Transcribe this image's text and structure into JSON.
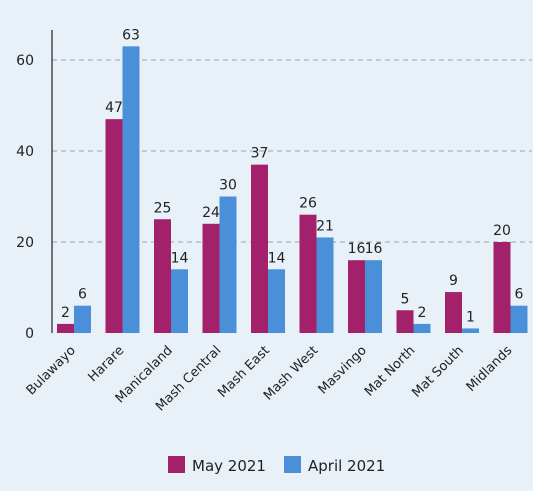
{
  "chart_data": {
    "type": "bar",
    "title": "",
    "xlabel": "",
    "ylabel": "",
    "ylim": [
      0,
      70
    ],
    "yticks": [
      0,
      20,
      40,
      60
    ],
    "grid": true,
    "legend_position": "bottom",
    "categories": [
      "Bulawayo",
      "Harare",
      "Manicaland",
      "Mash Central",
      "Mash East",
      "Mash West",
      "Masvingo",
      "Mat North",
      "Mat South",
      "Midlands"
    ],
    "series": [
      {
        "name": "May 2021",
        "color": "#a3206a",
        "values": [
          2,
          47,
          25,
          24,
          37,
          26,
          16,
          5,
          9,
          20
        ]
      },
      {
        "name": "April 2021",
        "color": "#4a90d9",
        "values": [
          6,
          63,
          14,
          30,
          14,
          21,
          16,
          2,
          1,
          6
        ]
      }
    ]
  }
}
